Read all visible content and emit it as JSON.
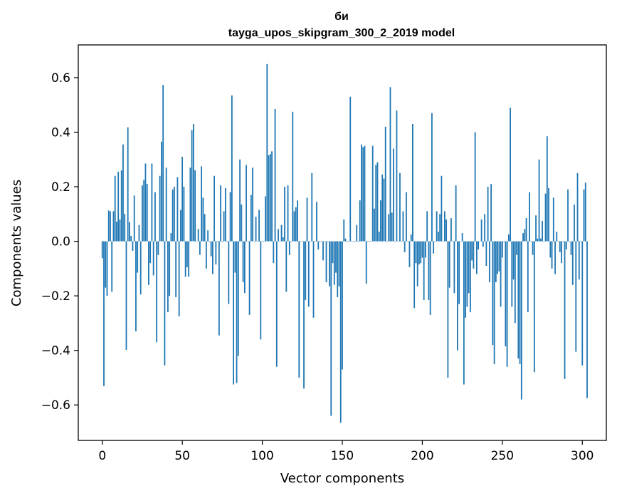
{
  "chart_data": {
    "type": "bar",
    "title_line1": "би",
    "title_line2": "tayga_upos_skipgram_300_2_2019 model",
    "xlabel": "Vector components",
    "ylabel": "Components values",
    "xlim": [
      -15,
      315
    ],
    "ylim": [
      -0.73,
      0.72
    ],
    "xticks": [
      0,
      50,
      100,
      150,
      200,
      250,
      300
    ],
    "xtick_labels": [
      "0",
      "50",
      "100",
      "150",
      "200",
      "250",
      "300"
    ],
    "yticks": [
      -0.6,
      -0.4,
      -0.2,
      0.0,
      0.2,
      0.4,
      0.6
    ],
    "ytick_labels": [
      "−0.6",
      "−0.4",
      "−0.2",
      "0.0",
      "0.2",
      "0.4",
      "0.6"
    ],
    "bar_color": "#1f77b4",
    "values": [
      -0.062,
      -0.531,
      -0.17,
      -0.2,
      0.113,
      0.11,
      -0.185,
      0.11,
      0.24,
      0.072,
      0.255,
      0.08,
      0.26,
      0.355,
      0.1,
      -0.398,
      0.418,
      0.07,
      0.02,
      -0.035,
      0.168,
      -0.33,
      -0.115,
      0.06,
      -0.195,
      0.205,
      0.225,
      0.285,
      0.21,
      -0.16,
      -0.08,
      0.285,
      -0.125,
      0.18,
      -0.37,
      -0.05,
      0.24,
      0.365,
      0.573,
      -0.455,
      0.27,
      -0.26,
      -0.2,
      0.03,
      0.19,
      0.2,
      -0.205,
      0.235,
      -0.275,
      0.115,
      0.31,
      0.2,
      -0.13,
      -0.095,
      -0.13,
      0.27,
      0.408,
      0.43,
      0.26,
      0.0,
      0.045,
      -0.05,
      0.275,
      0.16,
      0.1,
      -0.1,
      0.04,
      0.0,
      -0.055,
      -0.12,
      0.24,
      -0.085,
      0.0,
      -0.345,
      0.205,
      0.0,
      0.11,
      0.195,
      0.0,
      -0.23,
      0.18,
      0.535,
      -0.525,
      -0.115,
      -0.52,
      -0.42,
      0.3,
      0.135,
      -0.15,
      -0.19,
      0.28,
      0.0,
      -0.27,
      0.17,
      0.27,
      0.0,
      0.09,
      0.0,
      0.115,
      -0.36,
      0.0,
      0.0,
      0.165,
      0.65,
      0.315,
      0.32,
      0.33,
      -0.08,
      0.485,
      -0.46,
      0.045,
      0.0,
      0.06,
      0.015,
      0.2,
      -0.185,
      0.205,
      -0.05,
      0.0,
      0.475,
      0.11,
      0.125,
      0.15,
      -0.5,
      0.0,
      0.0,
      -0.54,
      -0.215,
      0.16,
      -0.24,
      0.0,
      0.25,
      -0.28,
      0.0,
      0.145,
      -0.03,
      0.0,
      0.0,
      -0.07,
      0.0,
      -0.15,
      0.0,
      -0.165,
      -0.64,
      -0.08,
      -0.16,
      -0.115,
      -0.205,
      -0.165,
      -0.665,
      -0.47,
      0.08,
      0.01,
      0.0,
      0.0,
      0.53,
      0.0,
      0.0,
      0.0,
      0.06,
      0.0,
      0.15,
      0.355,
      0.345,
      0.35,
      -0.155,
      0.0,
      0.0,
      0.0,
      0.35,
      0.12,
      0.28,
      0.29,
      0.035,
      0.15,
      0.245,
      0.23,
      0.42,
      0.0,
      0.1,
      0.565,
      0.105,
      0.34,
      0.0,
      0.48,
      0.0,
      0.25,
      0.0,
      0.11,
      -0.04,
      0.18,
      0.0,
      -0.095,
      0.025,
      0.43,
      -0.245,
      -0.08,
      -0.165,
      -0.085,
      -0.08,
      -0.06,
      -0.215,
      -0.06,
      0.11,
      -0.215,
      -0.27,
      0.47,
      -0.045,
      0.0,
      0.11,
      0.035,
      0.1,
      0.24,
      0.0,
      0.11,
      0.08,
      -0.5,
      -0.17,
      0.085,
      0.0,
      -0.19,
      0.205,
      -0.4,
      -0.23,
      0.0,
      0.03,
      -0.525,
      -0.28,
      -0.24,
      -0.19,
      -0.26,
      -0.07,
      -0.1,
      0.4,
      -0.12,
      -0.03,
      0.0,
      0.08,
      -0.02,
      0.1,
      -0.09,
      0.2,
      -0.15,
      0.21,
      -0.38,
      -0.45,
      -0.15,
      -0.12,
      -0.11,
      -0.24,
      -0.06,
      0.0,
      -0.385,
      -0.46,
      0.025,
      0.49,
      -0.24,
      -0.14,
      -0.3,
      -0.05,
      -0.43,
      -0.45,
      -0.58,
      0.03,
      0.045,
      0.085,
      -0.26,
      0.18,
      0.0,
      -0.05,
      -0.48,
      0.095,
      0.01,
      0.3,
      0.01,
      0.075,
      0.0,
      0.175,
      0.385,
      0.195,
      -0.06,
      -0.1,
      0.16,
      -0.12,
      0.035,
      0.0,
      -0.04,
      -0.08,
      0.0,
      -0.505,
      -0.03,
      0.19,
      0.0,
      -0.05,
      -0.16,
      0.135,
      -0.405,
      0.25,
      -0.14,
      0.0,
      -0.455,
      0.19,
      0.215,
      -0.575
    ]
  }
}
